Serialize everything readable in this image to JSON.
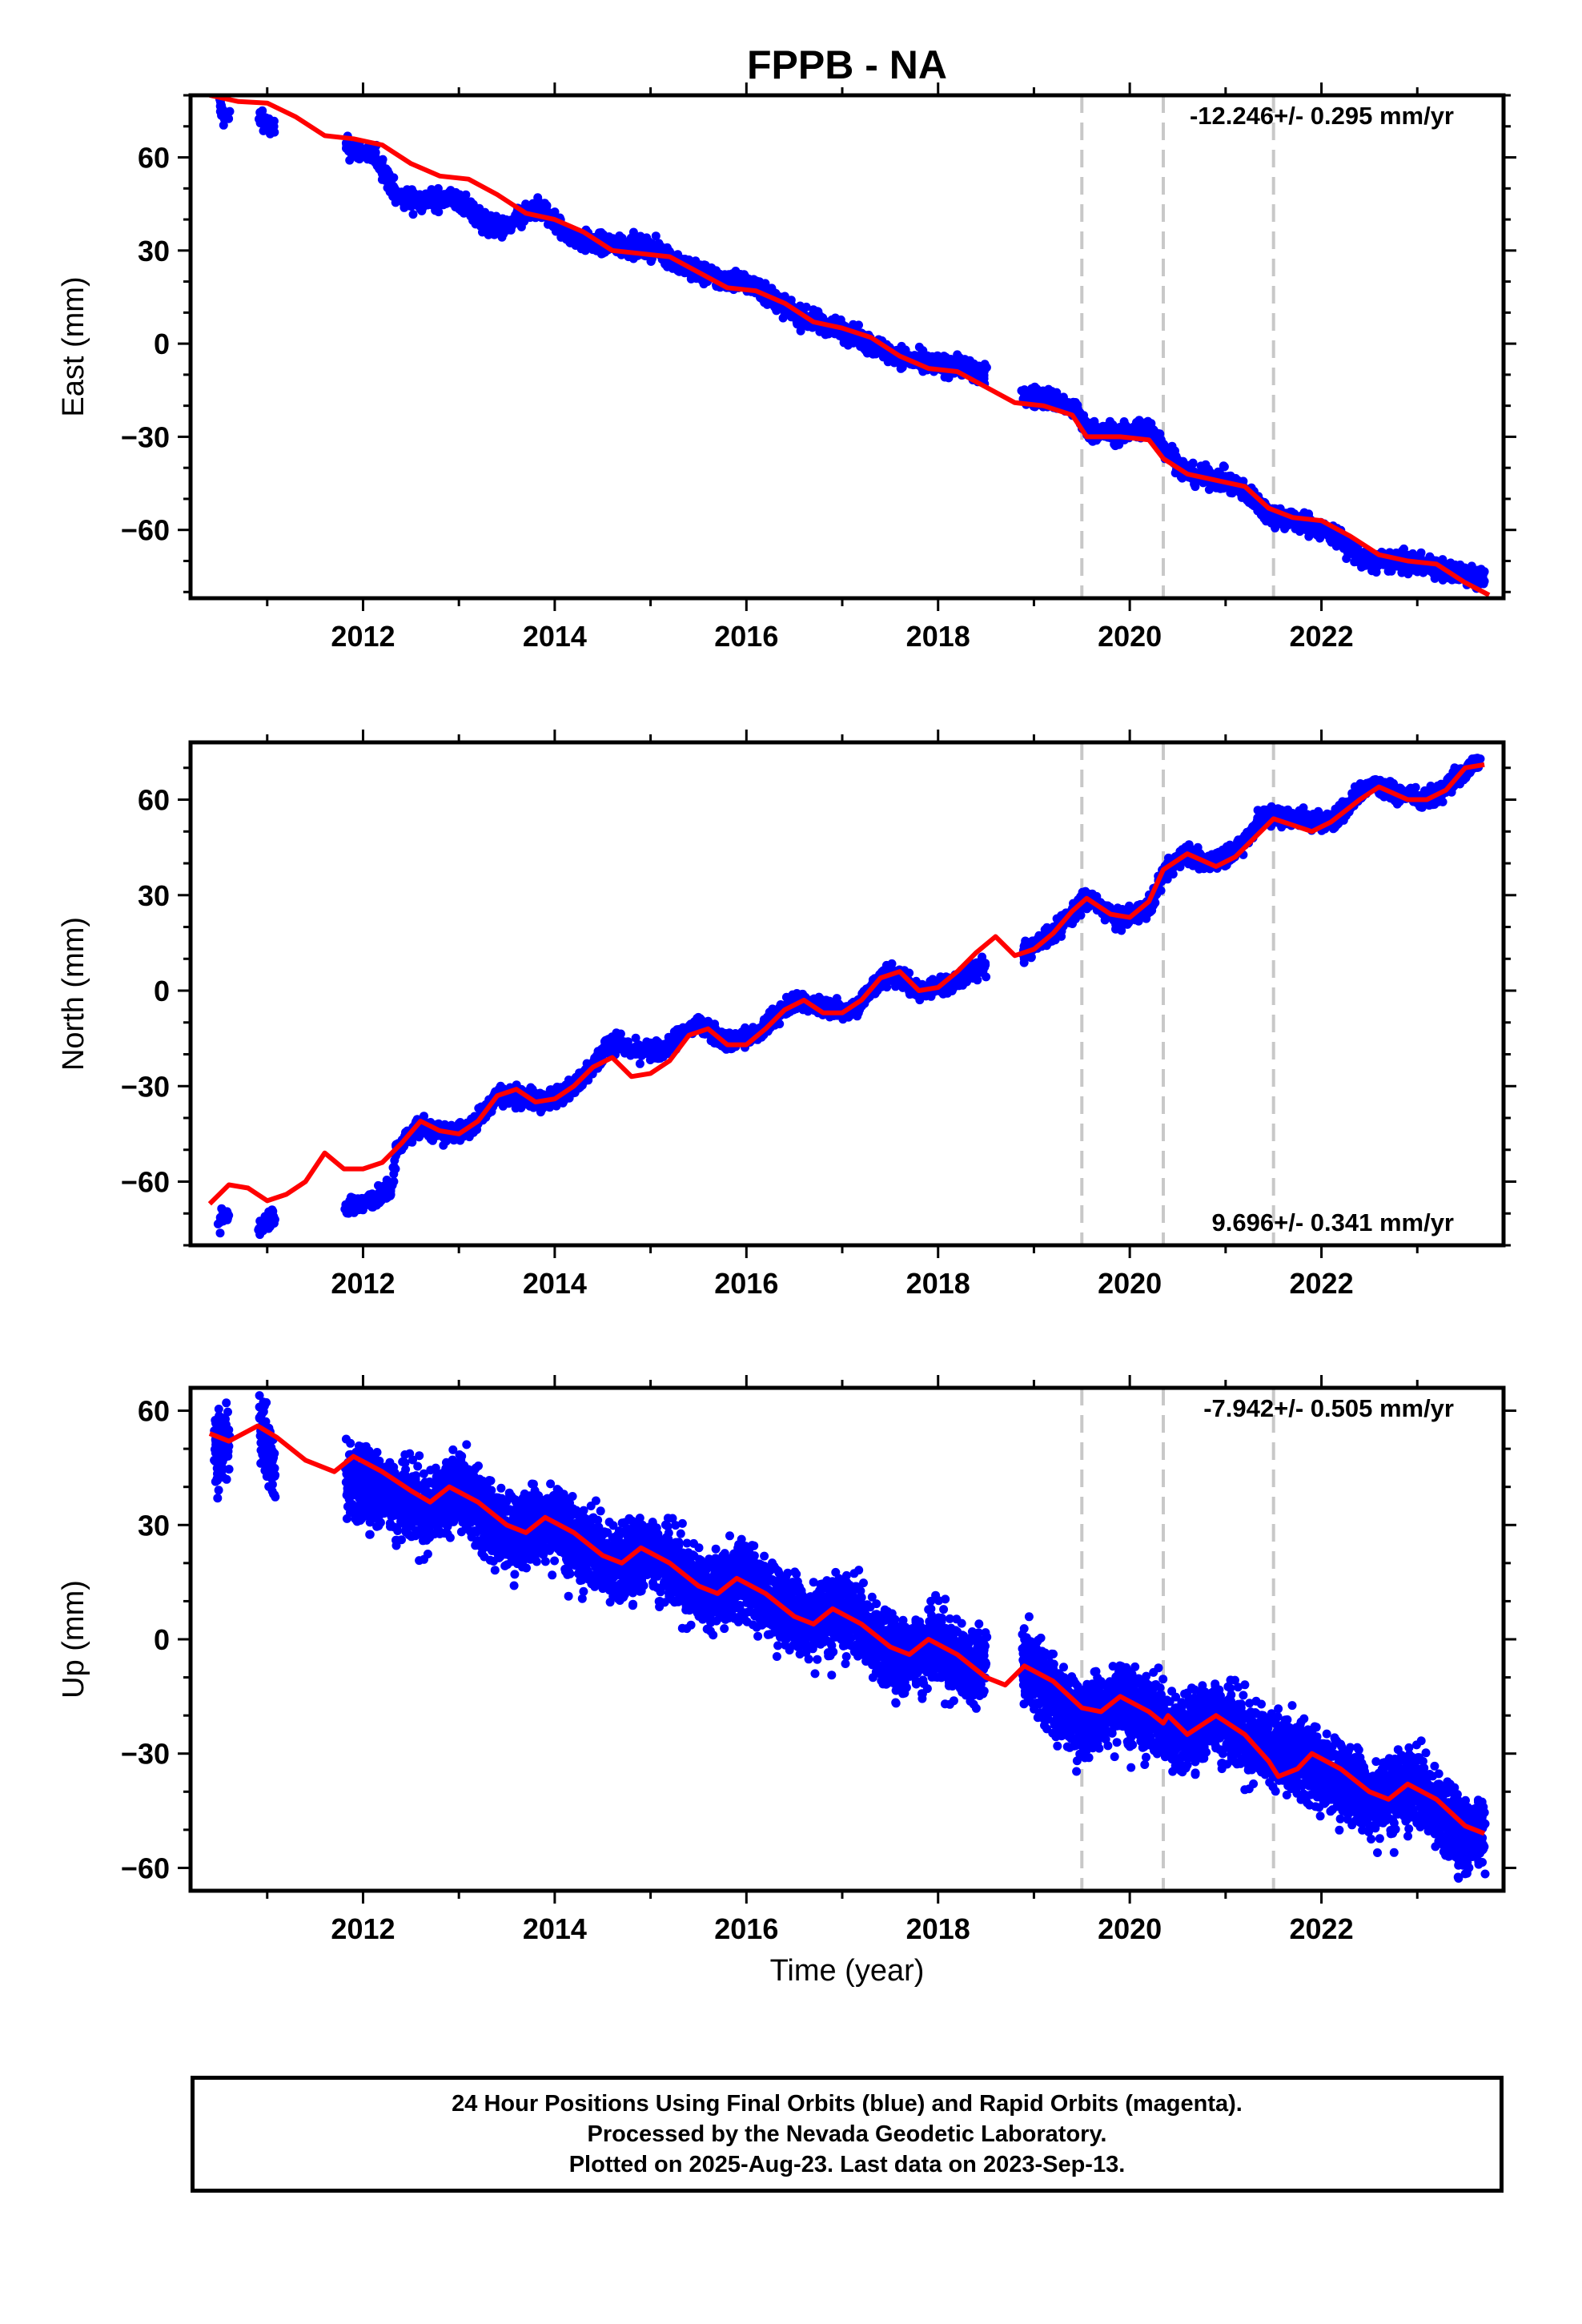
{
  "title": "FPPB - NA",
  "xlabel": "Time (year)",
  "colors": {
    "data": "#0000ff",
    "model": "#ff0000",
    "breaks": "#c8c8c8"
  },
  "chart_data": [
    {
      "type": "scatter",
      "ylabel": "East (mm)",
      "rate": "-12.246+/- 0.295 mm/yr",
      "rate_position": "top-right",
      "xlim": [
        2010.2,
        2023.9
      ],
      "ylim": [
        -82,
        80
      ],
      "xticks": [
        2012,
        2014,
        2016,
        2018,
        2020,
        2022
      ],
      "yticks": [
        -60,
        -30,
        0,
        30,
        60
      ],
      "breaks": [
        2019.5,
        2020.35,
        2021.5
      ],
      "data_trend": [
        [
          2010.5,
          77
        ],
        [
          2010.55,
          73
        ],
        [
          2010.95,
          73
        ],
        [
          2011,
          70
        ],
        [
          2011.85,
          63
        ],
        [
          2012.15,
          60
        ],
        [
          2012.25,
          54
        ],
        [
          2012.35,
          47
        ],
        [
          2012.6,
          46
        ],
        [
          2012.9,
          47
        ],
        [
          2013.05,
          45
        ],
        [
          2013.3,
          38
        ],
        [
          2013.5,
          37
        ],
        [
          2013.7,
          42
        ],
        [
          2013.9,
          43
        ],
        [
          2014.1,
          36
        ],
        [
          2014.3,
          33
        ],
        [
          2014.5,
          32
        ],
        [
          2014.9,
          31
        ],
        [
          2015.1,
          30
        ],
        [
          2015.4,
          24
        ],
        [
          2015.7,
          21
        ],
        [
          2016,
          20
        ],
        [
          2016.3,
          14
        ],
        [
          2016.6,
          8
        ],
        [
          2016.9,
          6
        ],
        [
          2017.2,
          1
        ],
        [
          2017.5,
          -3
        ],
        [
          2017.8,
          -6
        ],
        [
          2018.05,
          -7
        ],
        [
          2018.25,
          -7
        ],
        [
          2018.45,
          -10
        ],
        [
          2018.95,
          -17
        ],
        [
          2019.2,
          -18
        ],
        [
          2019.45,
          -22
        ],
        [
          2019.55,
          -28
        ],
        [
          2019.9,
          -29
        ],
        [
          2020.2,
          -27
        ],
        [
          2020.35,
          -33
        ],
        [
          2020.6,
          -42
        ],
        [
          2021.0,
          -44
        ],
        [
          2021.3,
          -50
        ],
        [
          2021.45,
          -55
        ],
        [
          2021.85,
          -58
        ],
        [
          2022.15,
          -62
        ],
        [
          2022.45,
          -70
        ],
        [
          2022.7,
          -70
        ],
        [
          2023.05,
          -71
        ],
        [
          2023.3,
          -73
        ],
        [
          2023.7,
          -76
        ]
      ],
      "model_line": [
        [
          2010.4,
          80
        ],
        [
          2010.7,
          78
        ],
        [
          2011,
          77.5
        ],
        [
          2011.3,
          73
        ],
        [
          2011.6,
          67
        ],
        [
          2011.9,
          66
        ],
        [
          2012.2,
          64
        ],
        [
          2012.5,
          58
        ],
        [
          2012.8,
          54
        ],
        [
          2013.1,
          53
        ],
        [
          2013.4,
          48
        ],
        [
          2013.7,
          42
        ],
        [
          2014.0,
          40
        ],
        [
          2014.3,
          36
        ],
        [
          2014.6,
          30
        ],
        [
          2014.9,
          29
        ],
        [
          2015.2,
          28
        ],
        [
          2015.5,
          23
        ],
        [
          2015.8,
          18
        ],
        [
          2016.1,
          17
        ],
        [
          2016.4,
          13
        ],
        [
          2016.7,
          7
        ],
        [
          2017.0,
          5
        ],
        [
          2017.3,
          2
        ],
        [
          2017.6,
          -4
        ],
        [
          2017.9,
          -8
        ],
        [
          2018.2,
          -9
        ],
        [
          2018.5,
          -14
        ],
        [
          2018.8,
          -19
        ],
        [
          2019.1,
          -20
        ],
        [
          2019.4,
          -23
        ],
        [
          2019.55,
          -30
        ],
        [
          2019.9,
          -30
        ],
        [
          2020.2,
          -31
        ],
        [
          2020.35,
          -37
        ],
        [
          2020.6,
          -42
        ],
        [
          2020.9,
          -44
        ],
        [
          2021.2,
          -46
        ],
        [
          2021.45,
          -53
        ],
        [
          2021.7,
          -56
        ],
        [
          2022.0,
          -57
        ],
        [
          2022.3,
          -62
        ],
        [
          2022.6,
          -68
        ],
        [
          2022.9,
          -70
        ],
        [
          2023.2,
          -71
        ],
        [
          2023.5,
          -77
        ],
        [
          2023.75,
          -81
        ]
      ]
    },
    {
      "type": "scatter",
      "ylabel": "North (mm)",
      "rate": "9.696+/- 0.341 mm/yr",
      "rate_position": "bottom-right",
      "xlim": [
        2010.2,
        2023.9
      ],
      "ylim": [
        -80,
        78
      ],
      "xticks": [
        2012,
        2014,
        2016,
        2018,
        2020,
        2022
      ],
      "yticks": [
        -60,
        -30,
        0,
        30,
        60
      ],
      "breaks": [
        2019.5,
        2020.35,
        2021.5
      ],
      "data_trend": [
        [
          2010.5,
          -74
        ],
        [
          2010.55,
          -70
        ],
        [
          2010.95,
          -74
        ],
        [
          2011.0,
          -71
        ],
        [
          2011.85,
          -68
        ],
        [
          2012.1,
          -66
        ],
        [
          2012.3,
          -62
        ],
        [
          2012.35,
          -50
        ],
        [
          2012.6,
          -42
        ],
        [
          2012.8,
          -45
        ],
        [
          2013.1,
          -44
        ],
        [
          2013.4,
          -33
        ],
        [
          2013.6,
          -33
        ],
        [
          2013.9,
          -35
        ],
        [
          2014.2,
          -30
        ],
        [
          2014.45,
          -22
        ],
        [
          2014.6,
          -15
        ],
        [
          2014.8,
          -19
        ],
        [
          2015.1,
          -19
        ],
        [
          2015.5,
          -10
        ],
        [
          2015.8,
          -16
        ],
        [
          2016.1,
          -14
        ],
        [
          2016.5,
          -3
        ],
        [
          2016.8,
          -5
        ],
        [
          2017.1,
          -6
        ],
        [
          2017.5,
          6
        ],
        [
          2017.8,
          0
        ],
        [
          2018.1,
          2
        ],
        [
          2018.35,
          6
        ],
        [
          2018.9,
          12
        ],
        [
          2019.2,
          18
        ],
        [
          2019.55,
          29
        ],
        [
          2019.9,
          22
        ],
        [
          2020.2,
          26
        ],
        [
          2020.35,
          37
        ],
        [
          2020.55,
          43
        ],
        [
          2020.8,
          40
        ],
        [
          2021.1,
          44
        ],
        [
          2021.4,
          55
        ],
        [
          2021.85,
          54
        ],
        [
          2022.1,
          53
        ],
        [
          2022.5,
          65
        ],
        [
          2022.8,
          62
        ],
        [
          2023.1,
          60
        ],
        [
          2023.45,
          68
        ],
        [
          2023.65,
          72
        ]
      ],
      "model_line": [
        [
          2010.4,
          -67
        ],
        [
          2010.6,
          -61
        ],
        [
          2010.8,
          -62
        ],
        [
          2011.0,
          -66
        ],
        [
          2011.2,
          -64
        ],
        [
          2011.4,
          -60
        ],
        [
          2011.6,
          -51
        ],
        [
          2011.8,
          -56
        ],
        [
          2012.0,
          -56
        ],
        [
          2012.2,
          -54
        ],
        [
          2012.4,
          -48
        ],
        [
          2012.6,
          -41
        ],
        [
          2012.8,
          -44
        ],
        [
          2013.0,
          -45
        ],
        [
          2013.2,
          -41
        ],
        [
          2013.4,
          -33
        ],
        [
          2013.6,
          -31
        ],
        [
          2013.8,
          -35
        ],
        [
          2014.0,
          -34
        ],
        [
          2014.2,
          -30
        ],
        [
          2014.4,
          -24
        ],
        [
          2014.6,
          -21
        ],
        [
          2014.8,
          -27
        ],
        [
          2015.0,
          -26
        ],
        [
          2015.2,
          -22
        ],
        [
          2015.4,
          -14
        ],
        [
          2015.6,
          -12
        ],
        [
          2015.8,
          -17
        ],
        [
          2016.0,
          -17
        ],
        [
          2016.2,
          -12
        ],
        [
          2016.4,
          -6
        ],
        [
          2016.6,
          -3
        ],
        [
          2016.8,
          -7
        ],
        [
          2017.0,
          -7
        ],
        [
          2017.2,
          -3
        ],
        [
          2017.4,
          4
        ],
        [
          2017.6,
          6
        ],
        [
          2017.8,
          0
        ],
        [
          2018.0,
          1
        ],
        [
          2018.2,
          6
        ],
        [
          2018.4,
          12
        ],
        [
          2018.6,
          17
        ],
        [
          2018.8,
          11
        ],
        [
          2019.0,
          13
        ],
        [
          2019.2,
          18
        ],
        [
          2019.4,
          25
        ],
        [
          2019.55,
          29
        ],
        [
          2019.8,
          24
        ],
        [
          2020.0,
          23
        ],
        [
          2020.2,
          28
        ],
        [
          2020.35,
          38
        ],
        [
          2020.6,
          43
        ],
        [
          2020.9,
          39
        ],
        [
          2021.1,
          42
        ],
        [
          2021.3,
          48
        ],
        [
          2021.5,
          54
        ],
        [
          2021.7,
          52
        ],
        [
          2021.9,
          50
        ],
        [
          2022.1,
          53
        ],
        [
          2022.4,
          60
        ],
        [
          2022.6,
          64
        ],
        [
          2022.9,
          60
        ],
        [
          2023.1,
          60
        ],
        [
          2023.3,
          63
        ],
        [
          2023.5,
          70
        ],
        [
          2023.7,
          71
        ]
      ]
    },
    {
      "type": "scatter",
      "ylabel": "Up (mm)",
      "rate": "-7.942+/- 0.505 mm/yr",
      "rate_position": "top-right",
      "xlim": [
        2010.2,
        2023.9
      ],
      "ylim": [
        -66,
        66
      ],
      "xticks": [
        2012,
        2014,
        2016,
        2018,
        2020,
        2022
      ],
      "yticks": [
        -60,
        -30,
        0,
        30,
        60
      ],
      "breaks": [
        2019.5,
        2020.35,
        2021.5
      ],
      "data_trend": [
        [
          2010.45,
          51
        ],
        [
          2010.55,
          50
        ],
        [
          2010.95,
          55
        ],
        [
          2011.05,
          45
        ],
        [
          2011.85,
          42
        ],
        [
          2012.3,
          38
        ],
        [
          2012.7,
          34
        ],
        [
          2013.0,
          40
        ],
        [
          2013.3,
          32
        ],
        [
          2013.6,
          28
        ],
        [
          2014.0,
          32
        ],
        [
          2014.3,
          24
        ],
        [
          2014.6,
          20
        ],
        [
          2015.0,
          23
        ],
        [
          2015.3,
          18
        ],
        [
          2015.6,
          12
        ],
        [
          2016.0,
          16
        ],
        [
          2016.3,
          10
        ],
        [
          2016.6,
          5
        ],
        [
          2017.0,
          8
        ],
        [
          2017.3,
          1
        ],
        [
          2017.6,
          -5
        ],
        [
          2018.0,
          -1
        ],
        [
          2018.3,
          -7
        ],
        [
          2018.9,
          -6
        ],
        [
          2019.2,
          -14
        ],
        [
          2019.5,
          -22
        ],
        [
          2019.9,
          -15
        ],
        [
          2020.2,
          -20
        ],
        [
          2020.5,
          -25
        ],
        [
          2020.9,
          -20
        ],
        [
          2021.2,
          -25
        ],
        [
          2021.45,
          -28
        ],
        [
          2021.85,
          -32
        ],
        [
          2022.2,
          -36
        ],
        [
          2022.5,
          -42
        ],
        [
          2022.9,
          -38
        ],
        [
          2023.2,
          -44
        ],
        [
          2023.5,
          -52
        ],
        [
          2023.7,
          -50
        ]
      ],
      "model_line": [
        [
          2010.4,
          54
        ],
        [
          2010.6,
          52
        ],
        [
          2010.9,
          56
        ],
        [
          2011.1,
          53
        ],
        [
          2011.4,
          47
        ],
        [
          2011.7,
          44
        ],
        [
          2011.9,
          48
        ],
        [
          2012.2,
          44
        ],
        [
          2012.5,
          39
        ],
        [
          2012.7,
          36
        ],
        [
          2012.9,
          40
        ],
        [
          2013.2,
          36
        ],
        [
          2013.5,
          30
        ],
        [
          2013.7,
          28
        ],
        [
          2013.9,
          32
        ],
        [
          2014.2,
          28
        ],
        [
          2014.5,
          22
        ],
        [
          2014.7,
          20
        ],
        [
          2014.9,
          24
        ],
        [
          2015.2,
          20
        ],
        [
          2015.5,
          14
        ],
        [
          2015.7,
          12
        ],
        [
          2015.9,
          16
        ],
        [
          2016.2,
          12
        ],
        [
          2016.5,
          6
        ],
        [
          2016.7,
          4
        ],
        [
          2016.9,
          8
        ],
        [
          2017.2,
          4
        ],
        [
          2017.5,
          -2
        ],
        [
          2017.7,
          -4
        ],
        [
          2017.9,
          0
        ],
        [
          2018.2,
          -4
        ],
        [
          2018.5,
          -10
        ],
        [
          2018.7,
          -12
        ],
        [
          2018.9,
          -7
        ],
        [
          2019.2,
          -11
        ],
        [
          2019.5,
          -18
        ],
        [
          2019.7,
          -19
        ],
        [
          2019.9,
          -15
        ],
        [
          2020.2,
          -19
        ],
        [
          2020.35,
          -22
        ],
        [
          2020.4,
          -20
        ],
        [
          2020.6,
          -25
        ],
        [
          2020.9,
          -20
        ],
        [
          2021.2,
          -25
        ],
        [
          2021.45,
          -32
        ],
        [
          2021.55,
          -36
        ],
        [
          2021.75,
          -34
        ],
        [
          2021.9,
          -30
        ],
        [
          2022.2,
          -34
        ],
        [
          2022.5,
          -40
        ],
        [
          2022.7,
          -42
        ],
        [
          2022.9,
          -38
        ],
        [
          2023.2,
          -42
        ],
        [
          2023.5,
          -49
        ],
        [
          2023.7,
          -51
        ]
      ]
    }
  ],
  "footer": {
    "line1": "24 Hour Positions Using Final Orbits (blue) and Rapid Orbits (magenta).",
    "line2": "Processed by the Nevada Geodetic Laboratory.",
    "line3": "Plotted on 2025-Aug-23. Last data on 2023-Sep-13."
  }
}
